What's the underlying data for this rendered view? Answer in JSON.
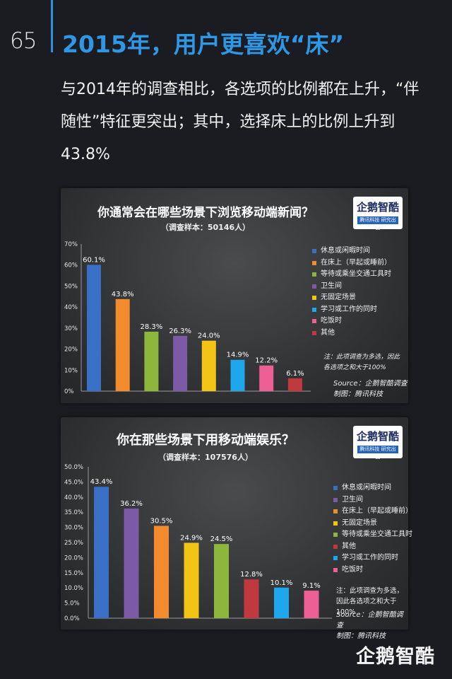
{
  "page_number": "65",
  "title": "2015年，用户更喜欢“床”",
  "subtitle": "与2014年的调查相比，各选项的比例都在上升，“伴随性”特征更突出；其中，选择床上的比例上升到43.8%",
  "brand_footer": "企鹅智酷",
  "logo": {
    "name": "企鹅智酷",
    "tagline": "腾讯科技 研究出品"
  },
  "chart_data": [
    {
      "type": "bar",
      "title": "你通常会在哪些场景下浏览移动端新闻？",
      "sample": "（调查样本：50146人）",
      "categories": [
        "休息或闲暇时间",
        "在床上（早起或睡前）",
        "等待或乘坐交通工具时",
        "卫生间",
        "无固定场景",
        "学习或工作的同时",
        "吃饭时",
        "其他"
      ],
      "values": [
        60.1,
        43.8,
        28.3,
        26.3,
        24.0,
        14.9,
        12.2,
        6.1
      ],
      "value_labels": [
        "60.1%",
        "43.8%",
        "28.3%",
        "26.3%",
        "24.0%",
        "14.9%",
        "12.2%",
        "6.1%"
      ],
      "colors": [
        "#3a6fc6",
        "#f28a2e",
        "#8db63c",
        "#7c5aa7",
        "#f2c416",
        "#1ea7ec",
        "#ee5f96",
        "#c0393f"
      ],
      "yticks": [
        0,
        10,
        20,
        30,
        40,
        50,
        60,
        70
      ],
      "ytick_labels": [
        "0%",
        "10%",
        "20%",
        "30%",
        "40%",
        "50%",
        "60%",
        "70%"
      ],
      "ylim": [
        0,
        70
      ],
      "grid": false,
      "legend": "right",
      "note": "注：此项调查为多选，因此各选项之和大于100%",
      "source_lines": [
        "Source：企鹅智酷调查",
        "制图：腾讯科技"
      ]
    },
    {
      "type": "bar",
      "title": "你在那些场景下用移动端娱乐？",
      "sample": "（调查样本：107576人）",
      "categories": [
        "休息或闲暇时间",
        "卫生间",
        "在床上（早起或睡前）",
        "无固定场景",
        "等待或乘坐交通工具时",
        "其他",
        "学习或工作的同时",
        "吃饭时"
      ],
      "values": [
        43.4,
        36.2,
        30.5,
        24.9,
        24.5,
        12.8,
        10.1,
        9.1
      ],
      "value_labels": [
        "43.4%",
        "36.2%",
        "30.5%",
        "24.9%",
        "24.5%",
        "12.8%",
        "10.1%",
        "9.1%"
      ],
      "colors": [
        "#3a6fc6",
        "#7c5aa7",
        "#f28a2e",
        "#f2c416",
        "#8db63c",
        "#c0393f",
        "#1ea7ec",
        "#ee5f96"
      ],
      "yticks": [
        0,
        5,
        10,
        15,
        20,
        25,
        30,
        35,
        40,
        45,
        50
      ],
      "ytick_labels": [
        "0.0%",
        "5.0%",
        "10.0%",
        "15.0%",
        "20.0%",
        "25.0%",
        "30.0%",
        "35.0%",
        "40.0%",
        "45.0%",
        "50.0%"
      ],
      "ylim": [
        0,
        50
      ],
      "grid": false,
      "legend": "right",
      "note": "注：此项调查为多选，因此各选项之和大于100%",
      "source_lines": [
        "Source：企鹅智酷调查",
        "制图：腾讯科技"
      ]
    }
  ]
}
